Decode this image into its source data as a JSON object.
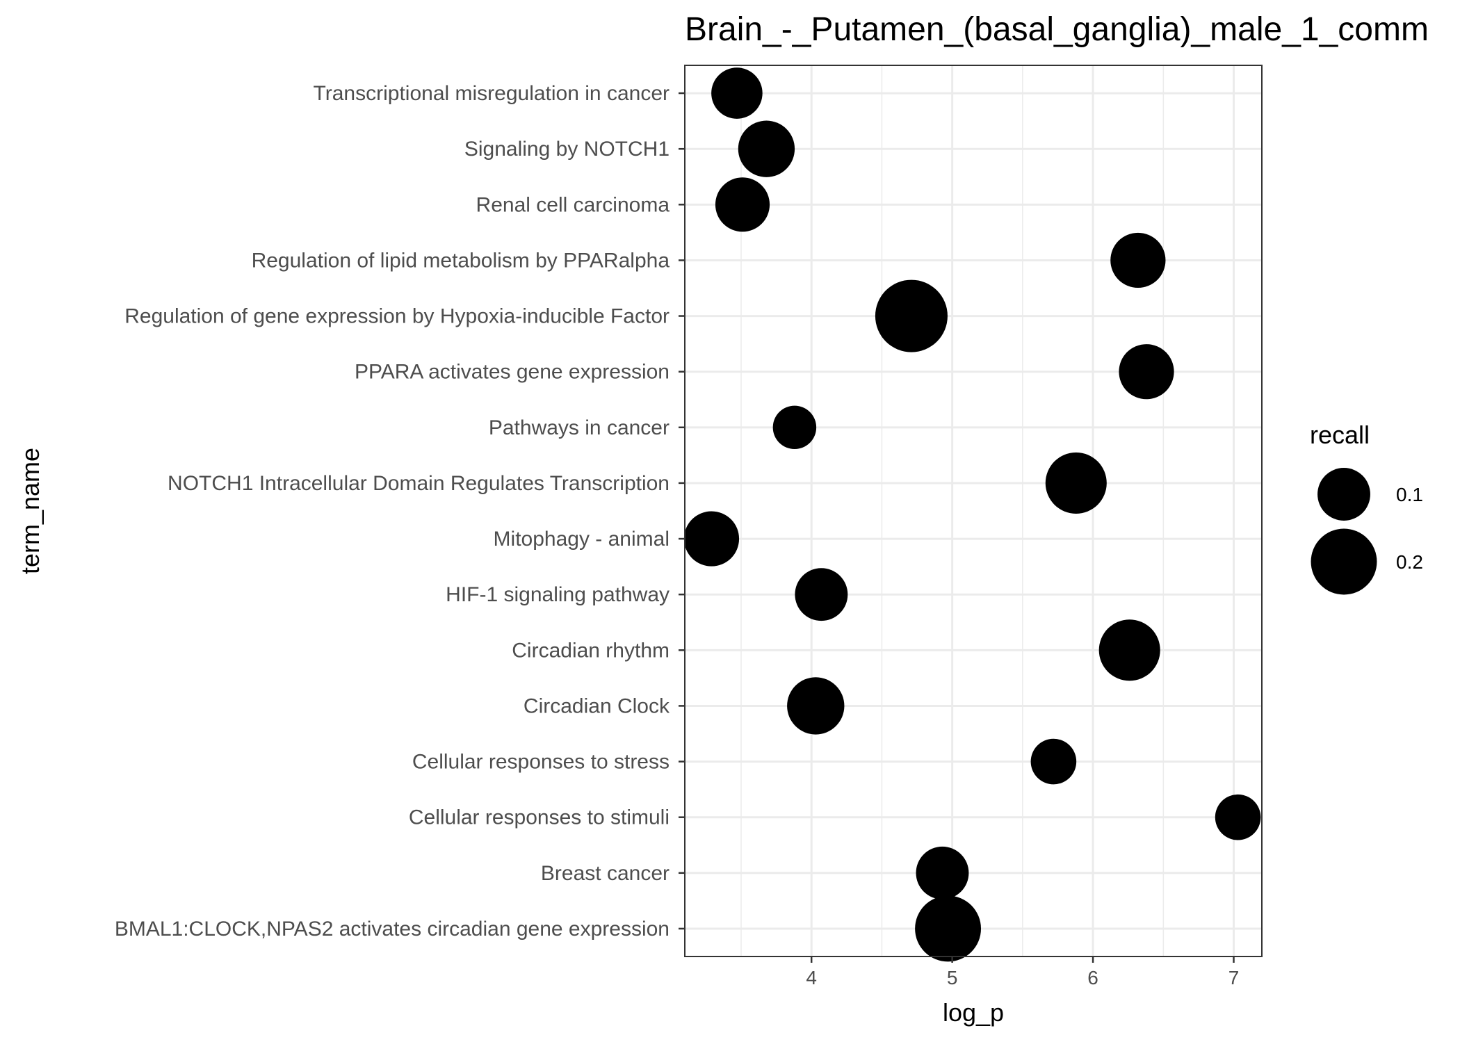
{
  "chart_data": {
    "type": "scatter",
    "title": "Brain_-_Putamen_(basal_ganglia)_male_1_comm",
    "xlabel": "log_p",
    "ylabel": "term_name",
    "xlim": [
      3.1,
      7.2
    ],
    "xticks": [
      "4",
      "5",
      "6",
      "7"
    ],
    "grid": true,
    "legend": {
      "title": "recall",
      "placement": "right",
      "entries": [
        {
          "label": "0.1",
          "value": 0.1
        },
        {
          "label": "0.2",
          "value": 0.2
        }
      ]
    },
    "colors": {
      "point": "#000000",
      "grid": "#ebebeb",
      "panel_border": "#333333"
    },
    "points": [
      {
        "term_name": "Transcriptional misregulation in cancer",
        "log_p": 3.47,
        "recall": 0.09
      },
      {
        "term_name": "Signaling by NOTCH1",
        "log_p": 3.68,
        "recall": 0.125
      },
      {
        "term_name": "Renal cell carcinoma",
        "log_p": 3.51,
        "recall": 0.11
      },
      {
        "term_name": "Regulation of lipid metabolism by PPARalpha",
        "log_p": 6.32,
        "recall": 0.115
      },
      {
        "term_name": "Regulation of gene expression by Hypoxia-inducible Factor",
        "log_p": 4.71,
        "recall": 0.26
      },
      {
        "term_name": "PPARA activates gene expression",
        "log_p": 6.38,
        "recall": 0.115
      },
      {
        "term_name": "Pathways in cancer",
        "log_p": 3.88,
        "recall": 0.05
      },
      {
        "term_name": "NOTCH1 Intracellular Domain Regulates Transcription",
        "log_p": 5.88,
        "recall": 0.16
      },
      {
        "term_name": "Mitophagy - animal",
        "log_p": 3.29,
        "recall": 0.115
      },
      {
        "term_name": "HIF-1 signaling pathway",
        "log_p": 4.07,
        "recall": 0.1
      },
      {
        "term_name": "Circadian rhythm",
        "log_p": 6.26,
        "recall": 0.16
      },
      {
        "term_name": "Circadian Clock",
        "log_p": 4.03,
        "recall": 0.13
      },
      {
        "term_name": "Cellular responses to stress",
        "log_p": 5.72,
        "recall": 0.06
      },
      {
        "term_name": "Cellular responses to stimuli",
        "log_p": 7.03,
        "recall": 0.06
      },
      {
        "term_name": "Breast cancer",
        "log_p": 4.93,
        "recall": 0.1
      },
      {
        "term_name": "BMAL1:CLOCK,NPAS2 activates circadian gene expression",
        "log_p": 4.97,
        "recall": 0.2
      }
    ]
  }
}
